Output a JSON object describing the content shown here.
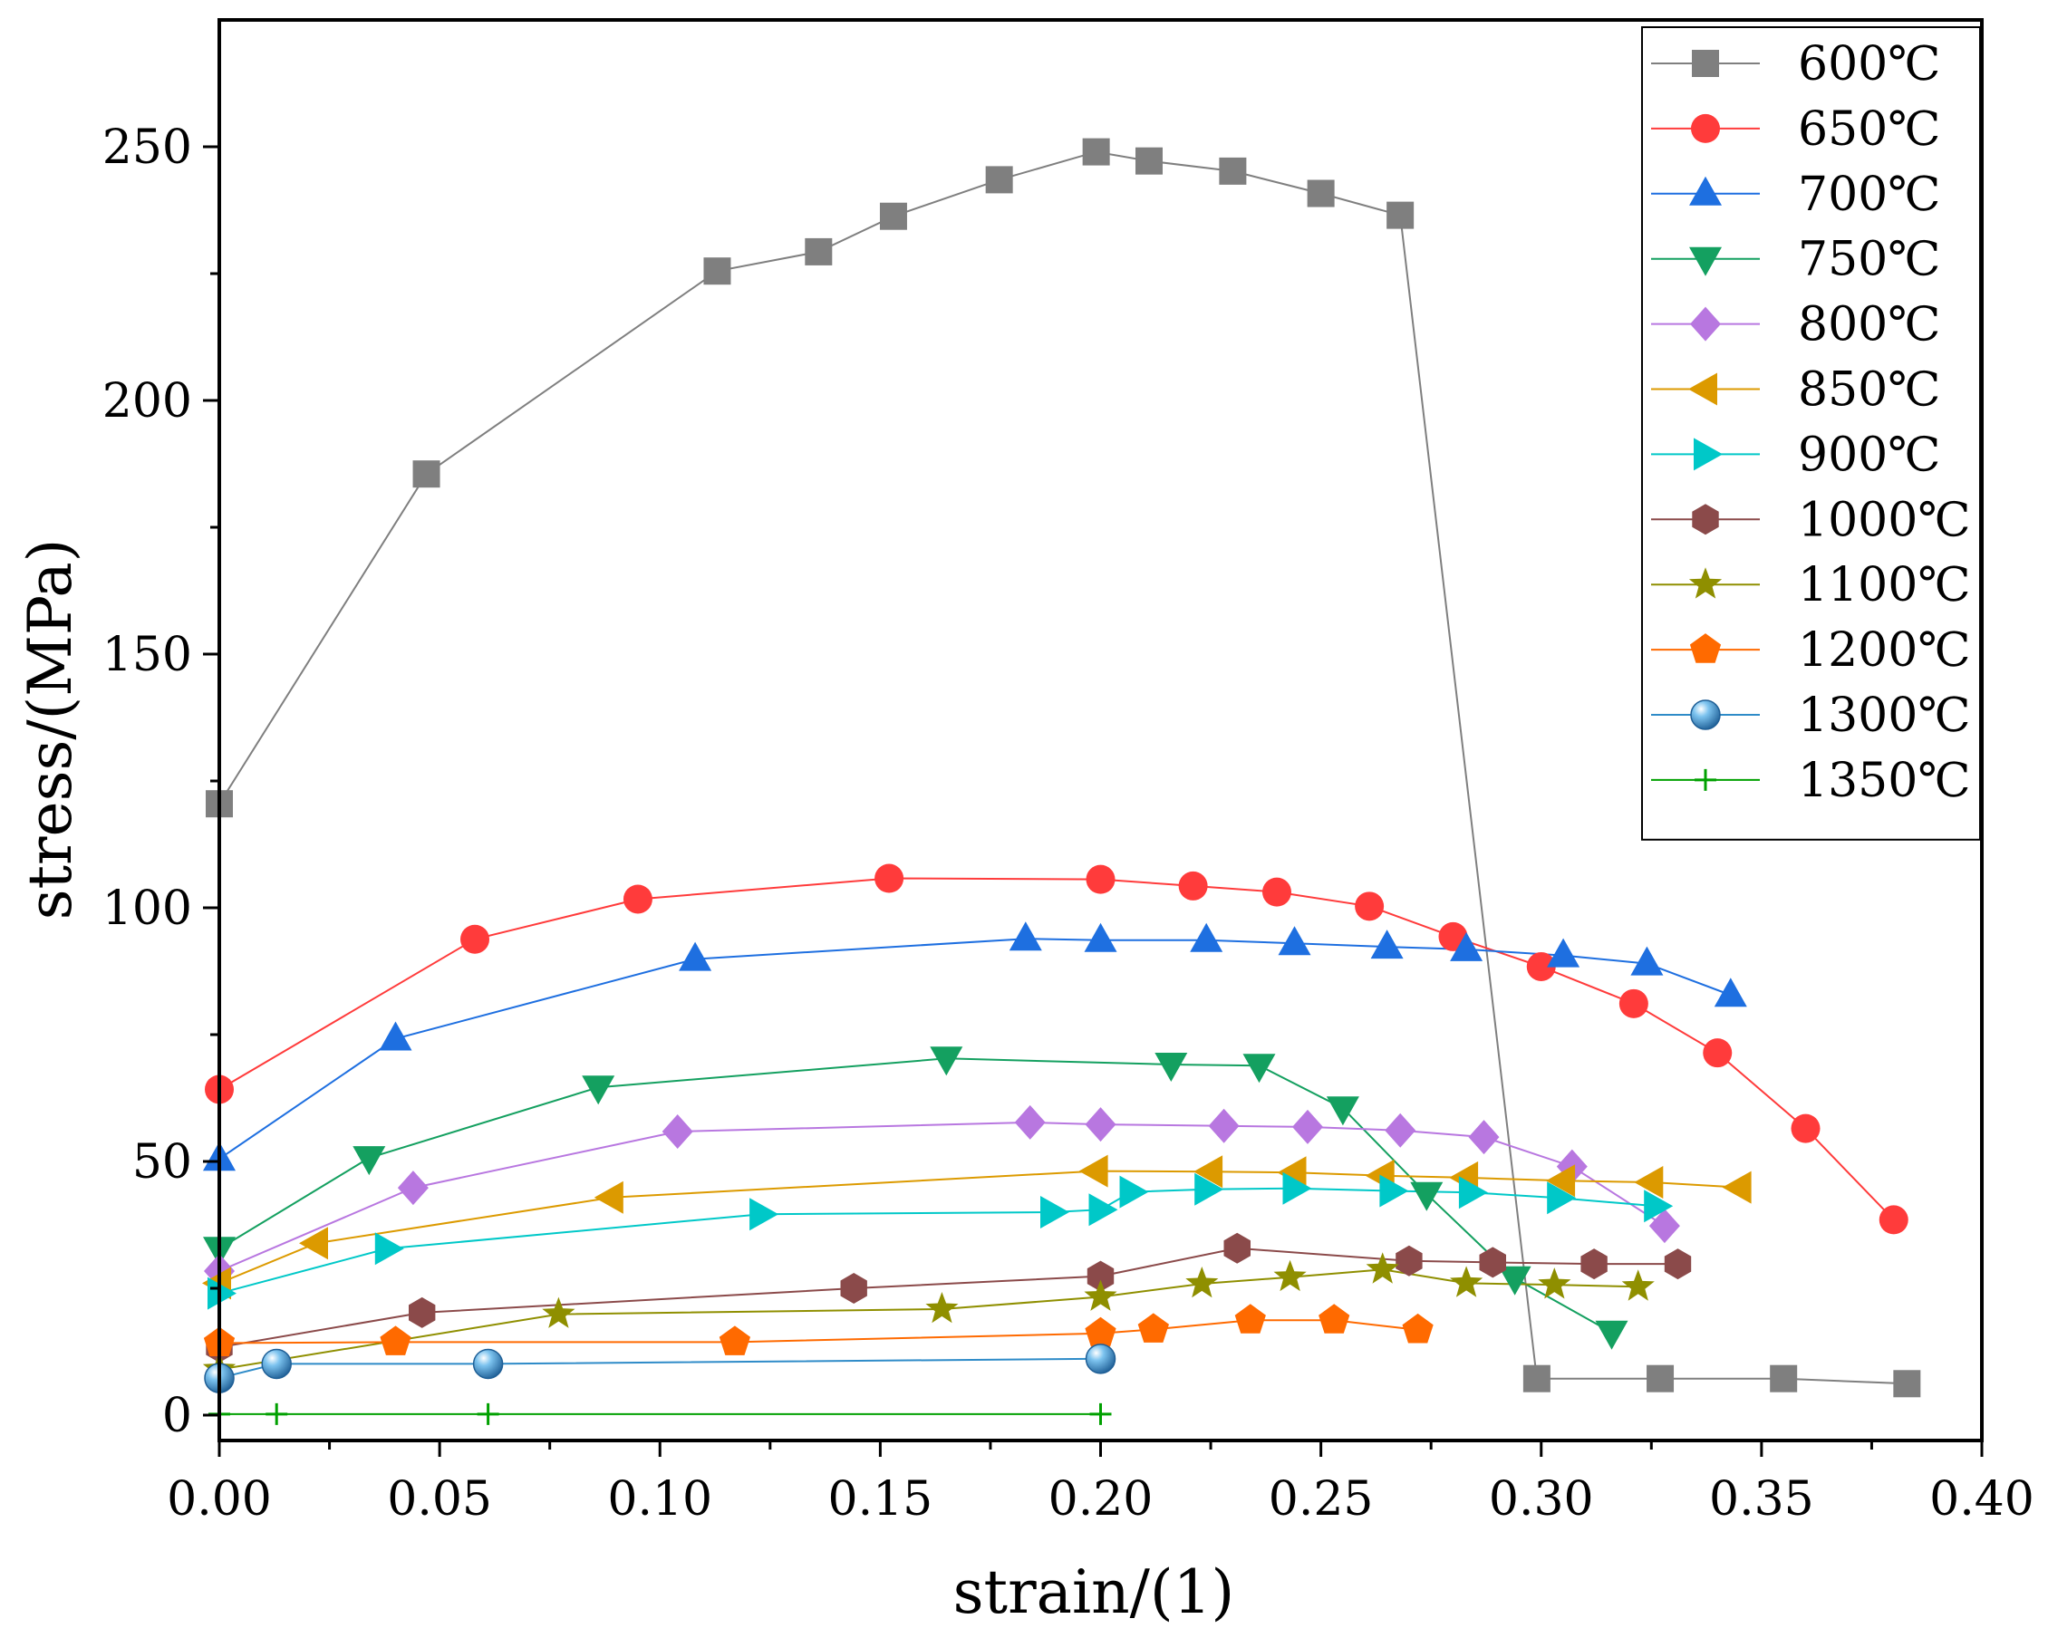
{
  "chart_data": {
    "type": "line",
    "title": "",
    "xlabel": "strain/(1)",
    "ylabel": "stress/(MPa)",
    "xlim": [
      0,
      0.4
    ],
    "ylim": [
      -5,
      275
    ],
    "xticks": [
      0,
      0.05,
      0.1,
      0.15,
      0.2,
      0.25,
      0.3,
      0.35,
      0.4
    ],
    "xtick_labels": [
      "0.00",
      "0.05",
      "0.10",
      "0.15",
      "0.20",
      "0.25",
      "0.30",
      "0.35",
      "0.40"
    ],
    "yticks": [
      0,
      50,
      100,
      150,
      200,
      250
    ],
    "ytick_labels": [
      "0",
      "50",
      "100",
      "150",
      "200",
      "250"
    ],
    "grid": false,
    "legend_position": "top-right",
    "series": [
      {
        "name": "600℃",
        "color": "#7f7f7f",
        "marker": "square",
        "x": [
          0,
          0.047,
          0.113,
          0.136,
          0.153,
          0.177,
          0.199,
          0.211,
          0.23,
          0.25,
          0.268,
          0.299,
          0.327,
          0.355,
          0.383
        ],
        "y": [
          120.5,
          185.5,
          225.5,
          229.3,
          236.3,
          243.5,
          249.0,
          247.2,
          245.2,
          240.8,
          236.5,
          7.2,
          7.2,
          7.2,
          6.2
        ]
      },
      {
        "name": "650℃",
        "color": "#ff3b3b",
        "marker": "circle",
        "x": [
          0,
          0.058,
          0.095,
          0.152,
          0.2,
          0.221,
          0.24,
          0.261,
          0.28,
          0.3,
          0.321,
          0.34,
          0.36,
          0.38
        ],
        "y": [
          64.2,
          93.8,
          101.7,
          105.8,
          105.6,
          104.3,
          103.1,
          100.3,
          94.3,
          88.4,
          81.1,
          71.4,
          56.5,
          38.5
        ]
      },
      {
        "name": "700℃",
        "color": "#1e6fe0",
        "marker": "triangle-up",
        "x": [
          0,
          0.04,
          0.108,
          0.183,
          0.2,
          0.224,
          0.244,
          0.265,
          0.283,
          0.305,
          0.324,
          0.343
        ],
        "y": [
          50.5,
          74.2,
          89.9,
          93.9,
          93.6,
          93.6,
          93.0,
          92.3,
          91.8,
          90.6,
          89.0,
          82.8
        ]
      },
      {
        "name": "750℃",
        "color": "#14a060",
        "marker": "triangle-down",
        "x": [
          0,
          0.034,
          0.086,
          0.165,
          0.216,
          0.236,
          0.255,
          0.274,
          0.294,
          0.316
        ],
        "y": [
          32.8,
          50.7,
          64.6,
          70.3,
          69.1,
          68.9,
          60.5,
          43.6,
          27.0,
          16.3
        ]
      },
      {
        "name": "800℃",
        "color": "#b877e0",
        "marker": "diamond",
        "x": [
          0,
          0.044,
          0.104,
          0.184,
          0.2,
          0.228,
          0.247,
          0.268,
          0.287,
          0.307,
          0.328
        ],
        "y": [
          28.4,
          44.8,
          55.9,
          57.7,
          57.3,
          57.0,
          56.8,
          56.1,
          54.8,
          49.0,
          37.3
        ]
      },
      {
        "name": "850℃",
        "color": "#dc9a00",
        "marker": "triangle-left",
        "x": [
          0,
          0.022,
          0.089,
          0.199,
          0.225,
          0.244,
          0.264,
          0.283,
          0.305,
          0.325,
          0.345
        ],
        "y": [
          26.0,
          33.9,
          42.9,
          48.1,
          48.0,
          47.8,
          47.2,
          46.8,
          46.2,
          45.9,
          44.9
        ]
      },
      {
        "name": "900℃",
        "color": "#00c8c8",
        "marker": "triangle-right",
        "x": [
          0,
          0.038,
          0.123,
          0.189,
          0.2,
          0.207,
          0.224,
          0.244,
          0.266,
          0.284,
          0.304,
          0.326
        ],
        "y": [
          24.0,
          32.8,
          39.6,
          40.0,
          40.5,
          44.0,
          44.5,
          44.7,
          44.2,
          43.9,
          42.8,
          41.2
        ]
      },
      {
        "name": "1000℃",
        "color": "#8b4a4a",
        "marker": "hexagon",
        "x": [
          0,
          0.046,
          0.144,
          0.2,
          0.231,
          0.27,
          0.289,
          0.312,
          0.331
        ],
        "y": [
          13.4,
          20.2,
          25.0,
          27.4,
          32.9,
          30.4,
          30.1,
          29.8,
          29.8
        ]
      },
      {
        "name": "1100℃",
        "color": "#8f8f00",
        "marker": "star",
        "x": [
          0,
          0.077,
          0.164,
          0.2,
          0.223,
          0.243,
          0.264,
          0.283,
          0.303,
          0.322
        ],
        "y": [
          9.0,
          19.9,
          20.9,
          23.3,
          25.9,
          27.2,
          28.7,
          26.0,
          25.7,
          25.3
        ]
      },
      {
        "name": "1200℃",
        "color": "#ff6a00",
        "marker": "pentagon",
        "x": [
          0,
          0.04,
          0.117,
          0.2,
          0.212,
          0.234,
          0.253,
          0.272
        ],
        "y": [
          14.2,
          14.4,
          14.4,
          16.1,
          16.9,
          18.7,
          18.7,
          16.8
        ]
      },
      {
        "name": "1300℃",
        "color": "#2e8bc8",
        "marker": "sphere",
        "x": [
          0,
          0.013,
          0.061,
          0.2
        ],
        "y": [
          7.3,
          10.1,
          10.1,
          11.1
        ]
      },
      {
        "name": "1350℃",
        "color": "#00a000",
        "marker": "plus",
        "x": [
          0,
          0.013,
          0.061,
          0.2
        ],
        "y": [
          0.2,
          0.2,
          0.2,
          0.2
        ]
      }
    ]
  }
}
